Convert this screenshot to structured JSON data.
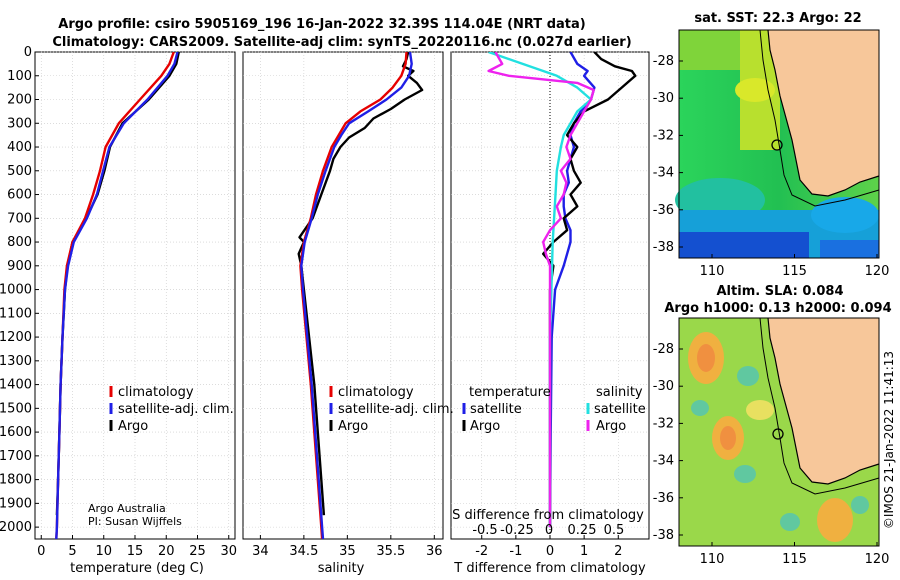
{
  "title": {
    "line1": "Argo profile: csiro 5905169_196 16-Jan-2022 32.39S 114.04E (NRT data)",
    "line2": "Climatology: CARS2009. Satellite-adj clim: synTS_20220116.nc (0.027d earlier)"
  },
  "colors": {
    "climatology": "#e60000",
    "satellite_adj": "#1f1fe6",
    "argo": "#000000",
    "satellite": "#22e0e0",
    "salinity_argo": "#ee22ee",
    "land": "#f7c79a"
  },
  "credits": {
    "org": "Argo Australia",
    "pi": "PI: Susan Wijffels",
    "imos": "©IMOS 21-Jan-2022 11:41:13"
  },
  "maps": {
    "sst": {
      "title": "sat. SST: 22.3 Argo: 22"
    },
    "sla": {
      "title1": "Altim. SLA: 0.084",
      "title2": "Argo h1000: 0.13 h2000: 0.094"
    },
    "lat_ticks": [
      "-28",
      "-30",
      "-32",
      "-34",
      "-36",
      "-38"
    ],
    "lon_ticks": [
      "110",
      "115",
      "120"
    ]
  },
  "chart_data": [
    {
      "type": "line",
      "name": "temperature",
      "xlabel": "temperature (deg C)",
      "ylabel": "",
      "xlim": [
        -1,
        31
      ],
      "ylim": [
        2050,
        0
      ],
      "xticks": [
        0,
        5,
        10,
        15,
        20,
        25,
        30
      ],
      "yticks": [
        0,
        100,
        200,
        300,
        400,
        500,
        600,
        700,
        800,
        900,
        1000,
        1100,
        1200,
        1300,
        1400,
        1500,
        1600,
        1700,
        1800,
        1900,
        2000
      ],
      "legend": [
        "climatology",
        "satellite-adj. clim.",
        "Argo"
      ],
      "series": [
        {
          "name": "climatology",
          "depth": [
            0,
            50,
            100,
            200,
            300,
            400,
            500,
            600,
            700,
            800,
            900,
            1000,
            1200,
            1400,
            1600,
            1800,
            2000,
            2050
          ],
          "values": [
            21.2,
            20.5,
            19.2,
            15.8,
            12.4,
            10.3,
            9.4,
            8.3,
            7.0,
            5.0,
            4.1,
            3.7,
            3.4,
            3.1,
            2.9,
            2.7,
            2.5,
            2.4
          ]
        },
        {
          "name": "satellite-adj. clim.",
          "depth": [
            0,
            50,
            100,
            200,
            300,
            400,
            500,
            600,
            700,
            800,
            900,
            1000,
            1200,
            1400,
            1600,
            1800,
            2000,
            2050
          ],
          "values": [
            21.8,
            21.3,
            20.2,
            17.0,
            13.2,
            10.9,
            9.9,
            8.9,
            7.3,
            5.2,
            4.3,
            3.8,
            3.4,
            3.1,
            2.9,
            2.7,
            2.5,
            2.4
          ]
        },
        {
          "name": "Argo",
          "depth": [
            0,
            50,
            100,
            200,
            300,
            400,
            500,
            600,
            700,
            800,
            900,
            1000,
            1200,
            1400,
            1600,
            1800,
            1950
          ],
          "values": [
            22.0,
            21.6,
            20.5,
            17.2,
            13.0,
            11.0,
            10.1,
            9.0,
            7.2,
            5.0,
            4.2,
            3.8,
            3.4,
            3.1,
            2.9,
            2.7,
            2.5
          ]
        }
      ]
    },
    {
      "type": "line",
      "name": "salinity",
      "xlabel": "salinity",
      "xlim": [
        33.8,
        36.1
      ],
      "ylim": [
        2050,
        0
      ],
      "xticks": [
        34,
        34.5,
        35,
        35.5,
        36
      ],
      "legend": [
        "climatology",
        "satellite-adj. clim.",
        "Argo"
      ],
      "series": [
        {
          "name": "climatology",
          "depth": [
            0,
            50,
            100,
            150,
            200,
            250,
            300,
            350,
            400,
            500,
            600,
            700,
            800,
            900,
            1000,
            1200,
            1400,
            1600,
            1800,
            2000,
            2050
          ],
          "values": [
            35.68,
            35.67,
            35.62,
            35.52,
            35.38,
            35.15,
            34.98,
            34.9,
            34.82,
            34.72,
            34.64,
            34.58,
            34.5,
            34.46,
            34.48,
            34.53,
            34.58,
            34.62,
            34.66,
            34.7,
            34.71
          ]
        },
        {
          "name": "satellite-adj. clim.",
          "depth": [
            0,
            50,
            100,
            150,
            200,
            250,
            300,
            350,
            400,
            500,
            600,
            700,
            800,
            900,
            1000,
            1200,
            1400,
            1600,
            1800,
            2000,
            2050
          ],
          "values": [
            35.72,
            35.74,
            35.71,
            35.62,
            35.45,
            35.24,
            35.02,
            34.93,
            34.85,
            34.75,
            34.66,
            34.59,
            34.51,
            34.47,
            34.49,
            34.54,
            34.59,
            34.63,
            34.67,
            34.71,
            34.72
          ]
        },
        {
          "name": "Argo",
          "depth": [
            0,
            30,
            60,
            80,
            100,
            130,
            160,
            200,
            240,
            280,
            320,
            360,
            400,
            450,
            500,
            600,
            700,
            780,
            800,
            850,
            900,
            1000,
            1200,
            1400,
            1600,
            1800,
            1950
          ],
          "values": [
            35.7,
            35.68,
            35.64,
            35.76,
            35.7,
            35.8,
            35.86,
            35.66,
            35.5,
            35.3,
            35.2,
            35.02,
            34.92,
            34.84,
            34.8,
            34.7,
            34.6,
            34.45,
            34.5,
            34.44,
            34.47,
            34.5,
            34.56,
            34.62,
            34.66,
            34.7,
            34.73
          ]
        }
      ]
    },
    {
      "type": "line",
      "name": "differences",
      "xlabel": "T difference from climatology",
      "xlabel_top": "S difference from climatology",
      "xlim": [
        -2.9,
        2.9
      ],
      "ylim": [
        2050,
        0
      ],
      "xticks": [
        -2,
        -1,
        0,
        1,
        2
      ],
      "s_ticks": [
        "-0.5",
        "-0.25",
        "0",
        "0.25",
        "0.5"
      ],
      "legend_temperature": [
        "temperature",
        "satellite",
        "Argo"
      ],
      "legend_salinity": [
        "salinity",
        "satellite",
        "Argo"
      ],
      "series": [
        {
          "name": "T satellite",
          "depth": [
            0,
            50,
            80,
            100,
            150,
            200,
            250,
            300,
            350,
            400,
            450,
            500,
            550,
            600,
            650,
            700,
            750,
            800,
            850,
            900,
            1000,
            1200,
            1600,
            2000
          ],
          "values": [
            0.6,
            0.8,
            1.1,
            1.0,
            1.3,
            1.2,
            0.9,
            0.7,
            0.6,
            0.7,
            0.6,
            0.5,
            0.55,
            0.4,
            0.4,
            0.45,
            0.6,
            0.6,
            0.5,
            0.4,
            0.15,
            0.05,
            0.02,
            0.0
          ]
        },
        {
          "name": "T Argo",
          "depth": [
            0,
            30,
            60,
            80,
            100,
            150,
            200,
            250,
            300,
            350,
            400,
            450,
            500,
            550,
            600,
            650,
            700,
            750,
            800,
            850,
            900,
            1000,
            1200,
            1600,
            2000
          ],
          "values": [
            1.3,
            1.5,
            1.9,
            2.4,
            2.5,
            2.1,
            1.7,
            1.0,
            0.7,
            0.5,
            0.8,
            0.6,
            0.7,
            0.9,
            0.6,
            0.8,
            0.4,
            0.5,
            0.1,
            -0.2,
            0.1,
            0.0,
            0.0,
            0.0,
            0.0
          ]
        },
        {
          "name": "S satellite",
          "depth": [
            0,
            50,
            80,
            100,
            150,
            200,
            250,
            300,
            350,
            400,
            500,
            600,
            700,
            800,
            1000,
            1200,
            1600,
            2000
          ],
          "values": [
            -0.45,
            -0.2,
            -0.05,
            0.05,
            0.2,
            0.3,
            0.2,
            0.15,
            0.1,
            0.08,
            0.05,
            0.04,
            0.03,
            0.02,
            0.01,
            0.0,
            0.0,
            0.0
          ]
        },
        {
          "name": "S Argo",
          "depth": [
            0,
            50,
            80,
            100,
            130,
            160,
            200,
            250,
            300,
            350,
            400,
            450,
            500,
            550,
            600,
            650,
            700,
            750,
            800,
            850,
            900,
            1000,
            1200,
            1600,
            2000
          ],
          "values": [
            -0.4,
            -0.35,
            -0.45,
            -0.3,
            0.2,
            0.32,
            0.3,
            0.25,
            0.2,
            0.15,
            0.12,
            0.15,
            0.08,
            0.12,
            0.1,
            0.05,
            0.08,
            0.0,
            -0.05,
            -0.03,
            0.0,
            0.0,
            0.0,
            0.0,
            0.0
          ]
        }
      ]
    }
  ]
}
